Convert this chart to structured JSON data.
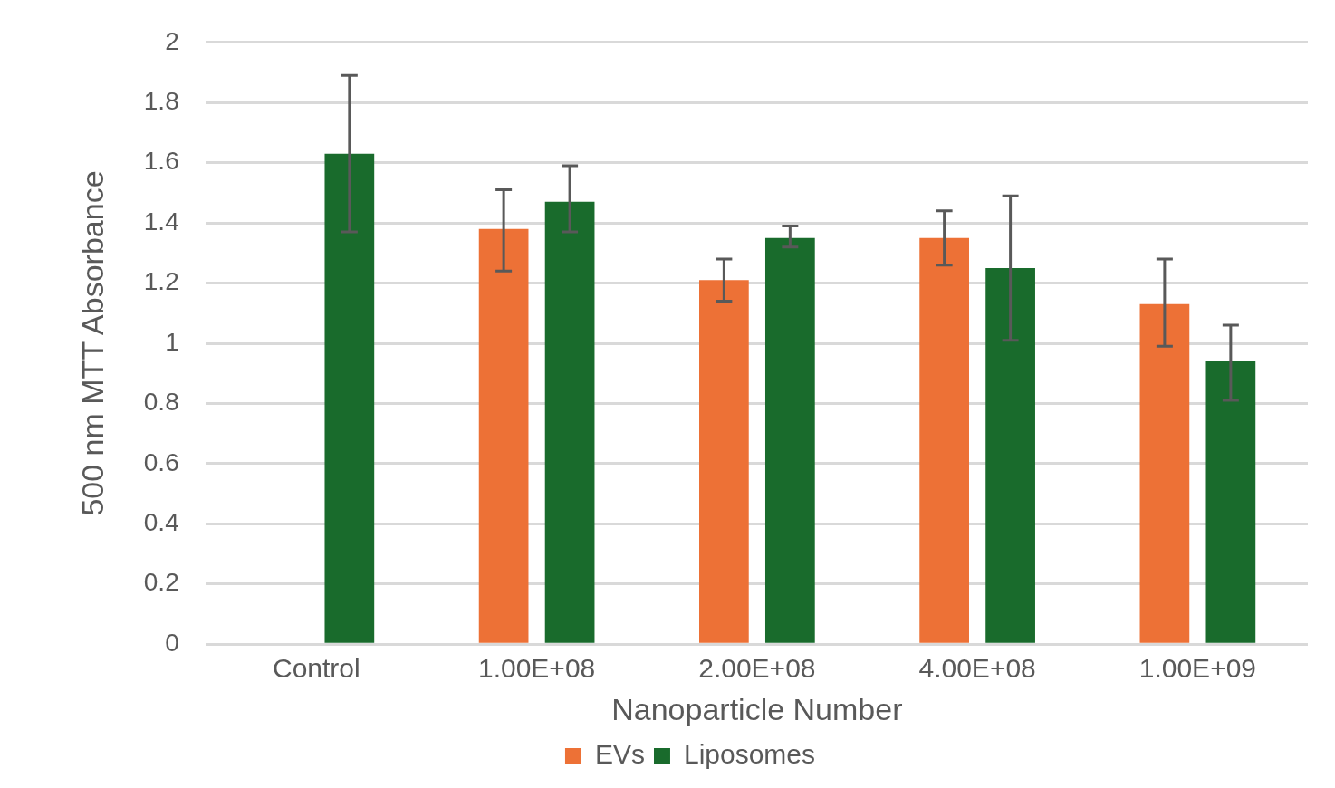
{
  "chart_data": {
    "type": "bar",
    "xlabel": "Nanoparticle Number",
    "ylabel": "500 nm MTT Absorbance",
    "categories": [
      "Control",
      "1.00E+08",
      "2.00E+08",
      "4.00E+08",
      "1.00E+09"
    ],
    "series": [
      {
        "name": "EVs",
        "color": "#ed7136",
        "values": [
          null,
          1.38,
          1.21,
          1.35,
          1.13
        ],
        "errors": [
          null,
          [
            1.24,
            1.51
          ],
          [
            1.14,
            1.28
          ],
          [
            1.26,
            1.44
          ],
          [
            0.99,
            1.28
          ]
        ]
      },
      {
        "name": "Liposomes",
        "color": "#196b2c",
        "values": [
          1.63,
          1.47,
          1.35,
          1.25,
          0.94
        ],
        "errors": [
          [
            1.37,
            1.89
          ],
          [
            1.37,
            1.59
          ],
          [
            1.32,
            1.39
          ],
          [
            1.01,
            1.49
          ],
          [
            0.81,
            1.06
          ]
        ]
      }
    ],
    "ylim": [
      0,
      2
    ],
    "yticks": [
      0,
      0.2,
      0.4,
      0.6,
      0.8,
      1,
      1.2,
      1.4,
      1.6,
      1.8,
      2
    ],
    "grid": "y",
    "legend": "bottom"
  }
}
